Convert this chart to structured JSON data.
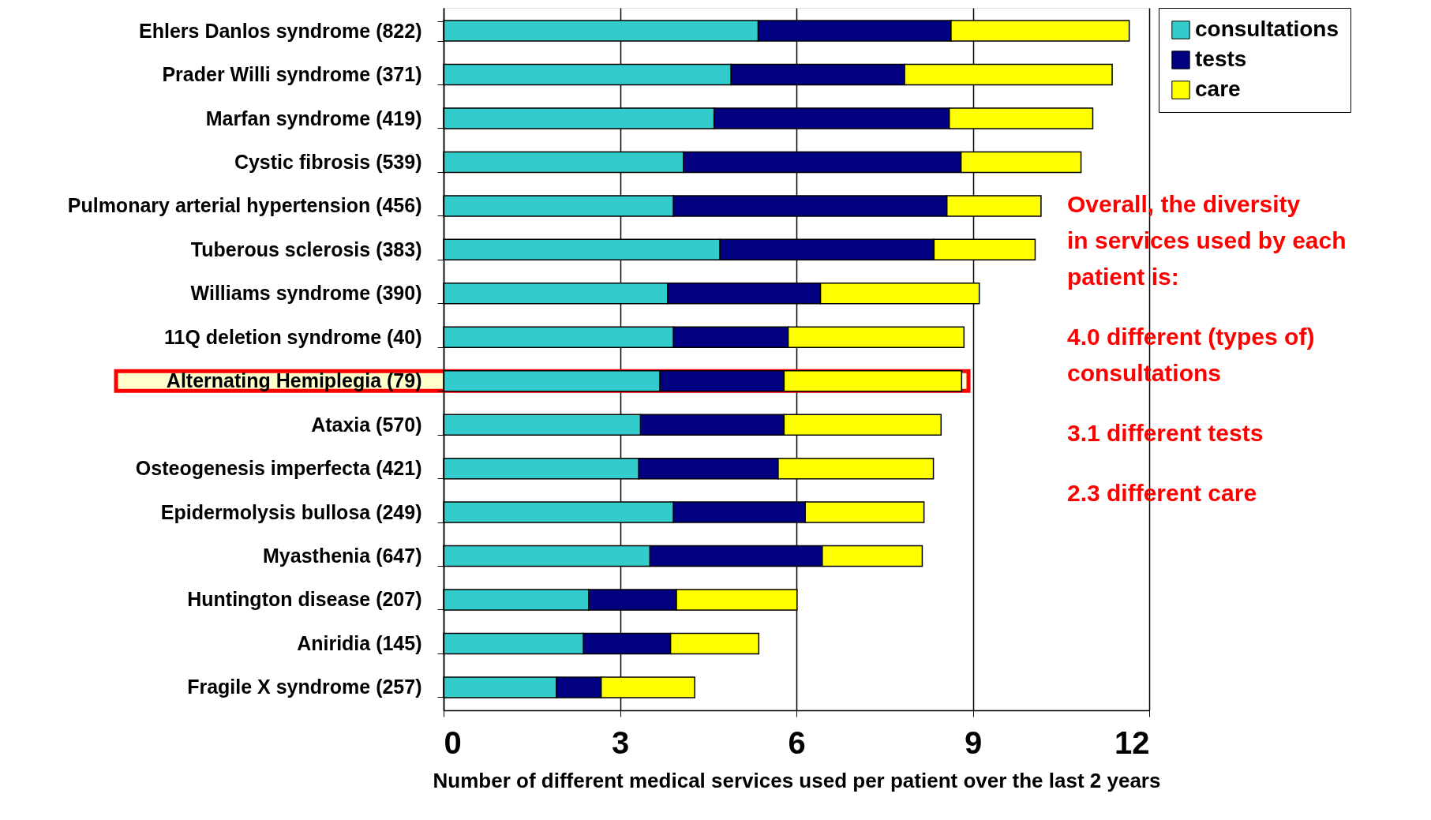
{
  "chart_data": {
    "type": "bar",
    "orientation": "horizontal",
    "stacked": true,
    "xlabel": "Number of different medical services used per patient over the last 2 years",
    "categories": [
      "Ehlers Danlos syndrome (822)",
      "Prader Willi syndrome (371)",
      "Marfan syndrome (419)",
      "Cystic fibrosis (539)",
      "Pulmonary arterial hypertension (456)",
      "Tuberous sclerosis (383)",
      "Williams syndrome (390)",
      "11Q deletion syndrome (40)",
      "Alternating Hemiplegia (79)",
      "Ataxia (570)",
      "Osteogenesis imperfecta (421)",
      "Epidermolysis bullosa (249)",
      "Myasthenia (647)",
      "Huntington disease (207)",
      "Aniridia (145)",
      "Fragile X syndrome (257)"
    ],
    "series": [
      {
        "name": "consultations",
        "color": "#33cccc",
        "values": [
          5.35,
          4.89,
          4.6,
          4.08,
          3.91,
          4.7,
          3.81,
          3.91,
          3.68,
          3.35,
          3.32,
          3.91,
          3.51,
          2.47,
          2.38,
          1.92
        ]
      },
      {
        "name": "tests",
        "color": "#000080",
        "values": [
          3.28,
          2.95,
          4.0,
          4.72,
          4.65,
          3.64,
          2.6,
          1.95,
          2.11,
          2.44,
          2.37,
          2.24,
          2.93,
          1.49,
          1.48,
          0.76
        ]
      },
      {
        "name": "care",
        "color": "#ffff00",
        "values": [
          3.03,
          3.53,
          2.44,
          2.04,
          1.6,
          1.72,
          2.7,
          2.99,
          3.02,
          2.67,
          2.64,
          2.02,
          1.7,
          2.05,
          1.5,
          1.59
        ]
      }
    ],
    "xlim": [
      0,
      12
    ],
    "xticks": [
      0,
      3,
      6,
      9,
      12
    ],
    "grid": "x",
    "legend": "top right",
    "bands": [
      {
        "axis": "y",
        "from": "Alternating Hemiplegia (79)",
        "to": "Alternating Hemiplegia (79)",
        "color": "#ffffcc"
      }
    ],
    "annotations": [
      "Overall, the diversity in services used by each patient is:",
      "4.0 different (types of) consultations",
      "3.1 different tests",
      "2.3 different care"
    ]
  }
}
